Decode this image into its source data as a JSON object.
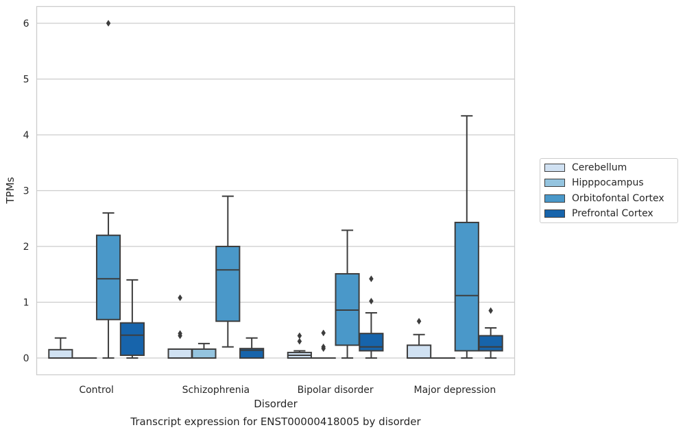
{
  "chart_data": {
    "type": "box",
    "title": "Transcript expression for ENST00000418005 by disorder",
    "xlabel": "Disorder",
    "ylabel": "TPMs",
    "categories": [
      "Control",
      "Schizophrenia",
      "Bipolar disorder",
      "Major depression"
    ],
    "ylim": [
      -0.3,
      6.3
    ],
    "yticks": [
      0,
      1,
      2,
      3,
      4,
      5,
      6
    ],
    "grid": "horizontal",
    "legend_position": "right",
    "series": [
      {
        "name": "Cerebellum",
        "color": "#d0e1f2",
        "boxes": [
          {
            "category": "Control",
            "whislo": 0,
            "q1": 0,
            "med": 0,
            "q3": 0.15,
            "whishi": 0.36,
            "fliers": []
          },
          {
            "category": "Schizophrenia",
            "whislo": 0,
            "q1": 0,
            "med": 0,
            "q3": 0.16,
            "whishi": 0.16,
            "fliers": [
              0.4,
              0.44,
              1.08
            ]
          },
          {
            "category": "Bipolar disorder",
            "whislo": 0,
            "q1": 0,
            "med": 0.05,
            "q3": 0.1,
            "whishi": 0.13,
            "fliers": [
              0.3,
              0.4
            ]
          },
          {
            "category": "Major depression",
            "whislo": 0,
            "q1": 0,
            "med": 0,
            "q3": 0.23,
            "whishi": 0.42,
            "fliers": [
              0.66
            ]
          }
        ]
      },
      {
        "name": "Hipppocampus",
        "color": "#94c4df",
        "boxes": [
          {
            "category": "Control",
            "whislo": 0,
            "q1": 0,
            "med": 0,
            "q3": 0,
            "whishi": 0,
            "fliers": []
          },
          {
            "category": "Schizophrenia",
            "whislo": 0,
            "q1": 0,
            "med": 0,
            "q3": 0.16,
            "whishi": 0.26,
            "fliers": []
          },
          {
            "category": "Bipolar disorder",
            "whislo": 0,
            "q1": 0,
            "med": 0,
            "q3": 0,
            "whishi": 0,
            "fliers": [
              0.17,
              0.2,
              0.45
            ]
          },
          {
            "category": "Major depression",
            "whislo": 0,
            "q1": 0,
            "med": 0,
            "q3": 0,
            "whishi": 0,
            "fliers": []
          }
        ]
      },
      {
        "name": "Orbitofontal Cortex",
        "color": "#4a98c9",
        "boxes": [
          {
            "category": "Control",
            "whislo": 0,
            "q1": 0.69,
            "med": 1.42,
            "q3": 2.2,
            "whishi": 2.6,
            "fliers": [
              6.0
            ]
          },
          {
            "category": "Schizophrenia",
            "whislo": 0.2,
            "q1": 0.66,
            "med": 1.58,
            "q3": 2.0,
            "whishi": 2.9,
            "fliers": []
          },
          {
            "category": "Bipolar disorder",
            "whislo": 0,
            "q1": 0.23,
            "med": 0.86,
            "q3": 1.51,
            "whishi": 2.29,
            "fliers": []
          },
          {
            "category": "Major depression",
            "whislo": 0,
            "q1": 0.13,
            "med": 1.12,
            "q3": 2.43,
            "whishi": 4.34,
            "fliers": []
          }
        ]
      },
      {
        "name": "Prefrontal Cortex",
        "color": "#1764ab",
        "boxes": [
          {
            "category": "Control",
            "whislo": 0,
            "q1": 0.05,
            "med": 0.41,
            "q3": 0.63,
            "whishi": 1.4,
            "fliers": []
          },
          {
            "category": "Schizophrenia",
            "whislo": 0,
            "q1": 0,
            "med": 0.14,
            "q3": 0.17,
            "whishi": 0.36,
            "fliers": []
          },
          {
            "category": "Bipolar disorder",
            "whislo": 0,
            "q1": 0.13,
            "med": 0.2,
            "q3": 0.44,
            "whishi": 0.81,
            "fliers": [
              1.02,
              1.42
            ]
          },
          {
            "category": "Major depression",
            "whislo": 0,
            "q1": 0.13,
            "med": 0.2,
            "q3": 0.4,
            "whishi": 0.54,
            "fliers": [
              0.85
            ]
          }
        ]
      }
    ]
  }
}
